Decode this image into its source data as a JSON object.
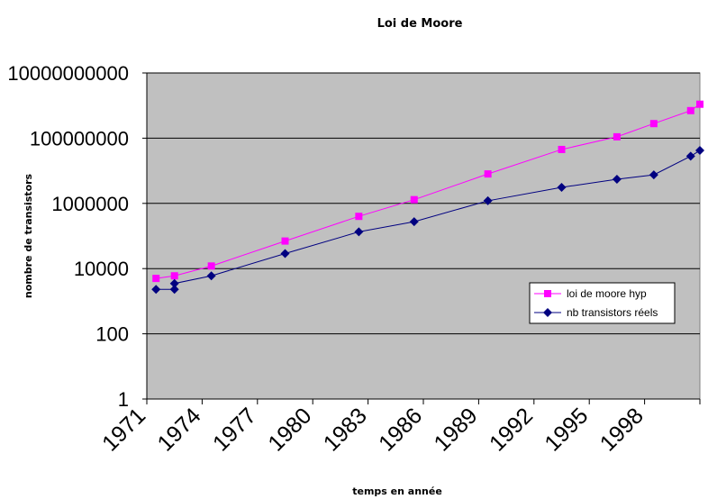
{
  "chart_data": {
    "type": "line",
    "title": "Loi de Moore",
    "xlabel": "temps en année",
    "ylabel": "nombre de transistors",
    "y_scale": "log",
    "ylim": [
      1,
      10000000000
    ],
    "y_ticks": [
      "1",
      "100",
      "10000",
      "1000000",
      "100000000",
      "10000000000"
    ],
    "x_ticks": [
      "1971",
      "1974",
      "1977",
      "1980",
      "1983",
      "1986",
      "1989",
      "1992",
      "1995",
      "1998"
    ],
    "xlim": [
      1971,
      2001
    ],
    "grid": "horizontal",
    "plot_background": "#c0c0c0",
    "legend": "right, lower-middle",
    "series": [
      {
        "name": "loi de moore hyp",
        "color": "#ff00ff",
        "marker": "square",
        "x": [
          1971.5,
          1972.5,
          1974.5,
          1978.5,
          1982.5,
          1985.5,
          1989.5,
          1993.5,
          1996.5,
          1998.5,
          2000.5,
          2001
        ],
        "y": [
          5000,
          6000,
          12000,
          70000,
          400000,
          1300000,
          8000000,
          45000000,
          110000000,
          280000000,
          700000000,
          1100000000
        ]
      },
      {
        "name": "nb transistors réels",
        "color": "#000080",
        "marker": "diamond",
        "x": [
          1971.5,
          1972.5,
          1972.5,
          1974.5,
          1978.5,
          1982.5,
          1985.5,
          1989.5,
          1993.5,
          1996.5,
          1998.5,
          2000.5,
          2001
        ],
        "y": [
          2300,
          2300,
          3500,
          6000,
          29000,
          134000,
          275000,
          1200000,
          3100000,
          5500000,
          7500000,
          28000000,
          42000000
        ]
      }
    ]
  }
}
